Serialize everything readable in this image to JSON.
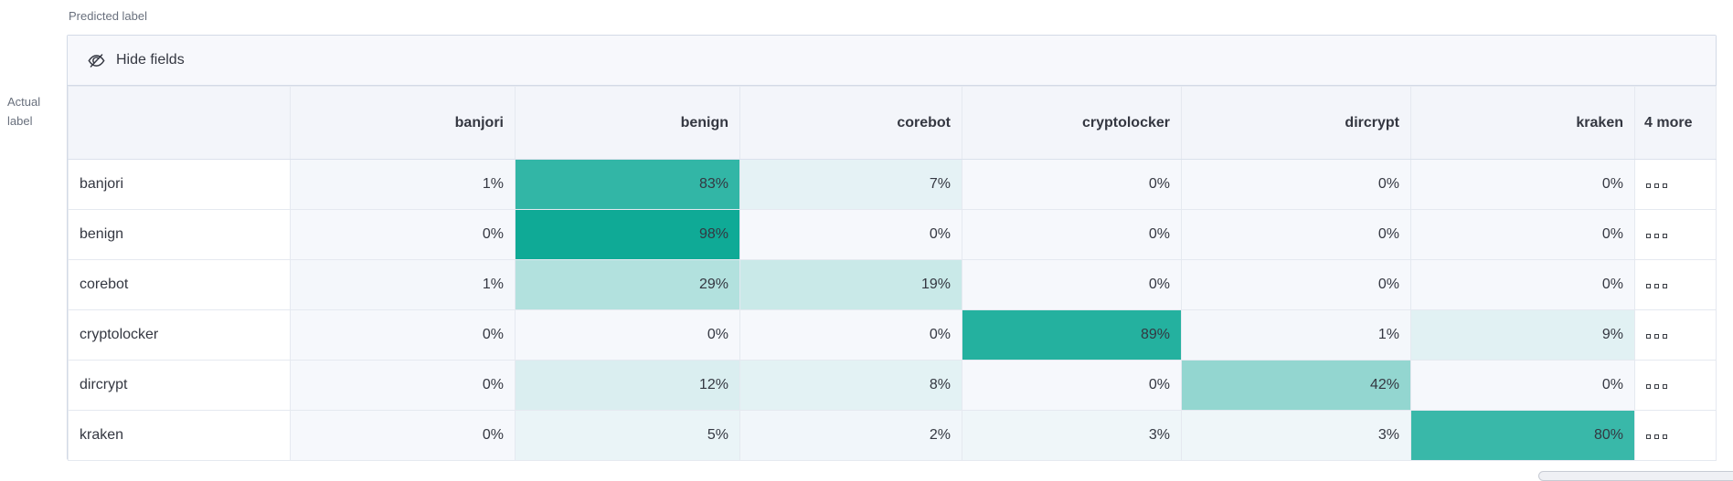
{
  "title_labels": {
    "predicted": "Predicted label",
    "actual": "Actual\nlabel"
  },
  "toolbar": {
    "hide_fields_label": "Hide fields",
    "hide_fields_icon": "eye-closed-icon"
  },
  "more_column": {
    "icon": "boxes-horizontal-icon"
  },
  "colors": {
    "teal": "#0aa894",
    "cell_base": "#f6f8fc",
    "header_bg": "#f3f5fa",
    "toolbar_bg": "#f7f8fc",
    "outer_border": "#d3dae6",
    "inner_border": "#e5e9f0",
    "text": "#343741",
    "muted_text": "#69707d"
  },
  "chart_data": {
    "type": "heatmap",
    "xlabel": "Predicted label",
    "ylabel": "Actual label",
    "columns": [
      "banjori",
      "benign",
      "corebot",
      "cryptolocker",
      "dircrypt",
      "kraken"
    ],
    "hidden_columns_label": "4 more",
    "rows": [
      "banjori",
      "benign",
      "corebot",
      "cryptolocker",
      "dircrypt",
      "kraken"
    ],
    "values_percent": [
      [
        1,
        83,
        7,
        0,
        0,
        0
      ],
      [
        0,
        98,
        0,
        0,
        0,
        0
      ],
      [
        1,
        29,
        19,
        0,
        0,
        0
      ],
      [
        0,
        0,
        0,
        89,
        1,
        9
      ],
      [
        0,
        12,
        8,
        0,
        42,
        0
      ],
      [
        0,
        5,
        2,
        3,
        3,
        80
      ]
    ],
    "display": [
      [
        "1%",
        "83%",
        "7%",
        "0%",
        "0%",
        "0%"
      ],
      [
        "0%",
        "98%",
        "0%",
        "0%",
        "0%",
        "0%"
      ],
      [
        "1%",
        "29%",
        "19%",
        "0%",
        "0%",
        "0%"
      ],
      [
        "0%",
        "0%",
        "0%",
        "89%",
        "1%",
        "9%"
      ],
      [
        "0%",
        "12%",
        "8%",
        "0%",
        "42%",
        "0%"
      ],
      [
        "0%",
        "5%",
        "2%",
        "3%",
        "3%",
        "80%"
      ]
    ],
    "legend": "off",
    "value_color_rule": "white-to-teal by percentage"
  }
}
